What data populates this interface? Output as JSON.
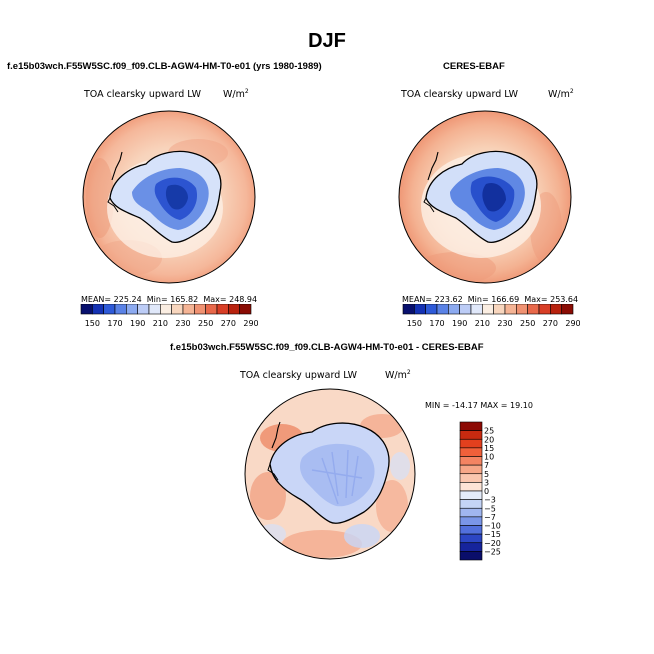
{
  "page": {
    "season": "DJF"
  },
  "chart_data": [
    {
      "type": "heatmap",
      "projection": "south polar stereographic",
      "panel_title": "f.e15b03wch.F55W5SC.f09_f09.CLB-AGW4-HM-T0-e01 (yrs 1980-1989)",
      "field_title": "TOA clearsky upward LW",
      "units": "W/m",
      "units_exp": "2",
      "mean_label": "MEAN=",
      "mean": "225.24",
      "min_label": "Min=",
      "min": "165.82",
      "max_label": "Max=",
      "max": "248.94",
      "colorbar_ticks": [
        "150",
        "170",
        "190",
        "210",
        "230",
        "250",
        "270",
        "290"
      ],
      "colorbar_colors": [
        "#08106e",
        "#1432b4",
        "#2e5ad8",
        "#5a82e6",
        "#8caaf0",
        "#bcccf6",
        "#e0e8fa",
        "#fbeee2",
        "#f8d6be",
        "#f5b495",
        "#f09272",
        "#e8684a",
        "#d83e26",
        "#b8220e",
        "#8a0c04"
      ]
    },
    {
      "type": "heatmap",
      "projection": "south polar stereographic",
      "panel_title": "CERES-EBAF",
      "field_title": "TOA clearsky upward LW",
      "units": "W/m",
      "units_exp": "2",
      "mean_label": "MEAN=",
      "mean": "223.62",
      "min_label": "Min=",
      "min": "166.69",
      "max_label": "Max=",
      "max": "253.64",
      "colorbar_ticks": [
        "150",
        "170",
        "190",
        "210",
        "230",
        "250",
        "270",
        "290"
      ],
      "colorbar_colors": [
        "#08106e",
        "#1432b4",
        "#2e5ad8",
        "#5a82e6",
        "#8caaf0",
        "#bcccf6",
        "#e0e8fa",
        "#fbeee2",
        "#f8d6be",
        "#f5b495",
        "#f09272",
        "#e8684a",
        "#d83e26",
        "#b8220e",
        "#8a0c04"
      ]
    },
    {
      "type": "heatmap",
      "projection": "south polar stereographic",
      "panel_title": "f.e15b03wch.F55W5SC.f09_f09.CLB-AGW4-HM-T0-e01 - CERES-EBAF",
      "field_title": "TOA clearsky upward LW",
      "units": "W/m",
      "units_exp": "2",
      "minmax_text": "MIN = -14.17 MAX =  19.10",
      "min": "-14.17",
      "max": "19.10",
      "colorbar_ticks": [
        "25",
        "20",
        "15",
        "10",
        "7",
        "5",
        "3",
        "0",
        "−3",
        "−5",
        "−7",
        "−10",
        "−15",
        "−20",
        "−25"
      ],
      "colorbar_colors": [
        "#8c0a04",
        "#c82a10",
        "#e2401e",
        "#f0603a",
        "#f48462",
        "#f7a788",
        "#fac6ae",
        "#fde4d6",
        "#e4ecfa",
        "#c4d4f6",
        "#a0b6f0",
        "#7a96e8",
        "#5270dc",
        "#2c46c4",
        "#16249c",
        "#0a0e6a"
      ]
    }
  ]
}
